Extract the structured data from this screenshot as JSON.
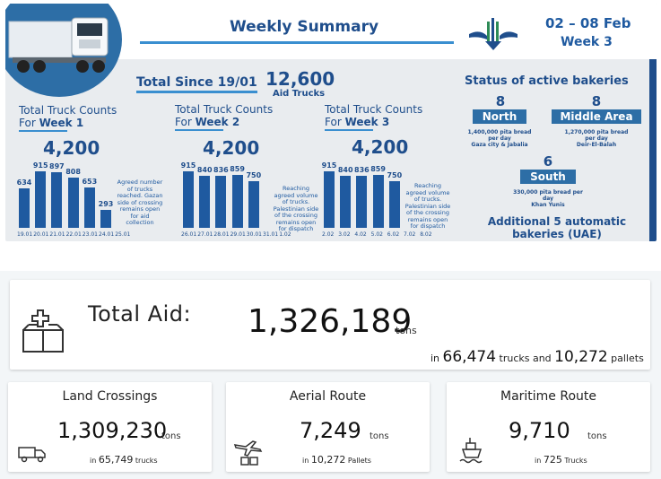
{
  "summary": {
    "title": "Weekly Summary",
    "date_range": "02 – 08 Feb",
    "week": "Week 3",
    "total_since_label": "Total Since 19/01",
    "total_trucks": "12,600",
    "total_trucks_unit": "Aid Trucks"
  },
  "weeks": [
    {
      "title_prefix": "Total Truck Counts",
      "title_for": "For ",
      "title_week": "Week 1",
      "total": "4,200",
      "note": "Agreed number of trucks reached. Gazan side of crossing remains open for aid collection"
    },
    {
      "title_prefix": "Total Truck Counts",
      "title_for": "For ",
      "title_week": "Week 2",
      "total": "4,200",
      "note": "Reaching agreed volume of trucks. Palestinian side of the crossing remains open for dispatch"
    },
    {
      "title_prefix": "Total Truck Counts",
      "title_for": "For ",
      "title_week": "Week 3",
      "total": "4,200",
      "note": "Reaching agreed volume of trucks. Palestinian side of the crossing remains open for dispatch"
    }
  ],
  "chart_data": [
    {
      "type": "bar",
      "title": "Total Truck Counts For Week 1",
      "categories": [
        "19.01",
        "20.01",
        "21.01",
        "22.01",
        "23.01",
        "24.01",
        "25.01"
      ],
      "values": [
        634,
        915,
        897,
        808,
        653,
        293,
        null
      ],
      "value_labels": [
        "634",
        "915",
        "897",
        "808",
        "653",
        "293",
        ""
      ],
      "ylim": [
        0,
        1000
      ],
      "grid": false,
      "legend": "none"
    },
    {
      "type": "bar",
      "title": "Total Truck Counts For Week 2",
      "categories": [
        "26.01",
        "27.01",
        "28.01",
        "29.01",
        "30.01",
        "31.01",
        "1.02"
      ],
      "values": [
        915,
        840,
        836,
        859,
        750,
        null,
        null
      ],
      "value_labels": [
        "915",
        "840",
        "836",
        "859",
        "750",
        "",
        ""
      ],
      "ylim": [
        0,
        1000
      ],
      "grid": false,
      "legend": "none"
    },
    {
      "type": "bar",
      "title": "Total Truck Counts For Week 3",
      "categories": [
        "2.02",
        "3.02",
        "4.02",
        "5.02",
        "6.02",
        "7.02",
        "8.02"
      ],
      "values": [
        915,
        840,
        836,
        859,
        750,
        null,
        null
      ],
      "value_labels": [
        "915",
        "840",
        "836",
        "859",
        "750",
        "",
        ""
      ],
      "ylim": [
        0,
        1000
      ],
      "grid": false,
      "legend": "none"
    }
  ],
  "bakeries": {
    "title": "Status of active bakeries",
    "north": {
      "count": "8",
      "label": "North",
      "desc1": "1,400,000 pita bread",
      "desc2": "per day",
      "desc3": "Gaza city & Jabalia"
    },
    "middle": {
      "count": "8",
      "label": "Middle Area",
      "desc1": "1,270,000 pita bread",
      "desc2": "per day",
      "desc3": "Deir-El-Balah"
    },
    "south": {
      "count": "6",
      "label": "South",
      "desc1": "330,000 pita bread per",
      "desc2": "day",
      "desc3": "Khan Yunis"
    },
    "additional": "Additional 5 automatic bakeries (UAE)"
  },
  "total_aid": {
    "label": "Total Aid:",
    "value": "1,326,189",
    "unit": "tons",
    "in": "in",
    "trucks": "66,474",
    "trucks_label": "trucks and",
    "pallets": "10,272",
    "pallets_label": "pallets",
    "icon": "aid-box-icon"
  },
  "routes": [
    {
      "title": "Land Crossings",
      "value": "1,309,230",
      "unit": "tons",
      "in": "in",
      "count": "65,749",
      "count_label": "trucks",
      "icon": "truck-icon"
    },
    {
      "title": "Aerial Route",
      "value": "7,249",
      "unit": "tons",
      "in": "in",
      "count": "10,272",
      "count_label": "Pallets",
      "icon": "airdrop-icon"
    },
    {
      "title": "Maritime Route",
      "value": "9,710",
      "unit": "tons",
      "in": "in",
      "count": "725",
      "count_label": "Trucks",
      "icon": "ship-icon"
    }
  ],
  "colors": {
    "primary": "#1f4e8c",
    "accent": "#3a8fd0",
    "bar": "#1f5aa0"
  }
}
